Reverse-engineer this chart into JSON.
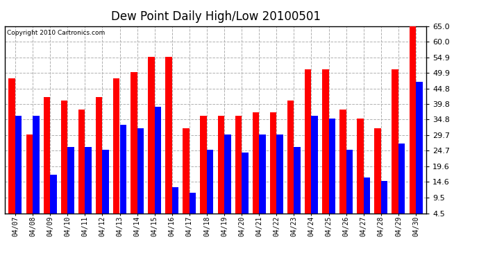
{
  "title": "Dew Point Daily High/Low 20100501",
  "copyright": "Copyright 2010 Cartronics.com",
  "dates": [
    "04/07",
    "04/08",
    "04/09",
    "04/10",
    "04/11",
    "04/12",
    "04/13",
    "04/14",
    "04/15",
    "04/16",
    "04/17",
    "04/18",
    "04/19",
    "04/20",
    "04/21",
    "04/22",
    "04/23",
    "04/24",
    "04/25",
    "04/26",
    "04/27",
    "04/28",
    "04/29",
    "04/30"
  ],
  "highs": [
    48.0,
    30.0,
    42.0,
    41.0,
    38.0,
    42.0,
    48.0,
    50.0,
    55.0,
    55.0,
    32.0,
    36.0,
    36.0,
    36.0,
    37.0,
    37.0,
    41.0,
    51.0,
    51.0,
    38.0,
    35.0,
    32.0,
    51.0,
    65.0
  ],
  "lows": [
    36.0,
    36.0,
    17.0,
    26.0,
    26.0,
    25.0,
    33.0,
    32.0,
    39.0,
    13.0,
    11.0,
    25.0,
    30.0,
    24.0,
    30.0,
    30.0,
    26.0,
    36.0,
    35.0,
    25.0,
    16.0,
    15.0,
    27.0,
    47.0
  ],
  "high_color": "#ff0000",
  "low_color": "#0000ff",
  "bg_color": "#ffffff",
  "plot_bg_color": "#ffffff",
  "grid_color": "#b0b0b0",
  "yticks": [
    4.5,
    9.5,
    14.6,
    19.6,
    24.7,
    29.7,
    34.8,
    39.8,
    44.8,
    49.9,
    54.9,
    60.0,
    65.0
  ],
  "ymin": 4.5,
  "ymax": 65.0,
  "bar_width": 0.38,
  "title_fontsize": 12
}
